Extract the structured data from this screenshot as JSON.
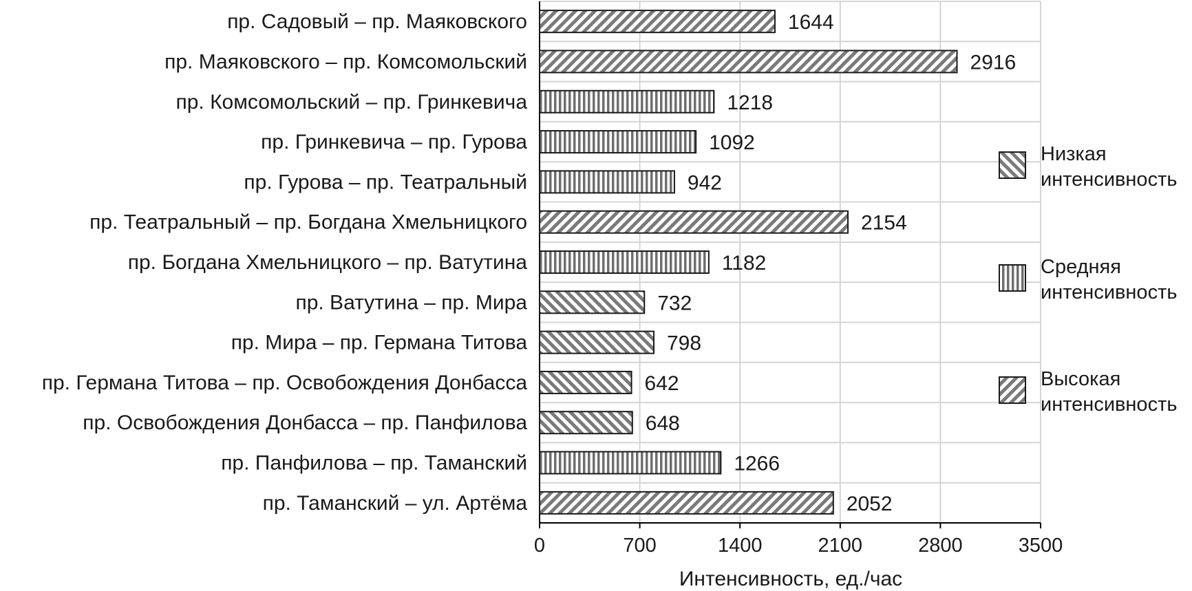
{
  "chart_data": {
    "type": "bar",
    "orientation": "horizontal",
    "title": "",
    "xlabel": "Интенсивность, ед./час",
    "ylabel": "",
    "xlim": [
      0,
      3500
    ],
    "xticks": [
      0,
      700,
      1400,
      2100,
      2800,
      3500
    ],
    "grid": true,
    "legend_position": "right",
    "categories": [
      "пр. Садовый – пр. Маяковского",
      "пр. Маяковского – пр. Комсомольский",
      "пр. Комсомольский – пр. Гринкевича",
      "пр. Гринкевича – пр. Гурова",
      "пр. Гурова – пр. Театральный",
      "пр. Театральный – пр. Богдана Хмельницкого",
      "пр. Богдана Хмельницкого – пр. Ватутина",
      "пр. Ватутина – пр. Мира",
      "пр. Мира – пр. Германа Титова",
      "пр. Германа Титова – пр. Освобождения Донбасса",
      "пр. Освобождения Донбасса – пр. Панфилова",
      "пр. Панфилова – пр. Таманский",
      "пр. Таманский – ул. Артёма"
    ],
    "values": [
      1644,
      2916,
      1218,
      1092,
      942,
      2154,
      1182,
      732,
      798,
      642,
      648,
      1266,
      2052
    ],
    "intensity": [
      "high",
      "high",
      "medium",
      "medium",
      "medium",
      "high",
      "medium",
      "low",
      "low",
      "low",
      "low",
      "medium",
      "high"
    ],
    "legend": [
      {
        "key": "low",
        "lines": [
          "Низкая",
          "интенсивность"
        ]
      },
      {
        "key": "medium",
        "lines": [
          "Средняя",
          "интенсивность"
        ]
      },
      {
        "key": "high",
        "lines": [
          "Высокая",
          "интенсивность"
        ]
      }
    ]
  }
}
